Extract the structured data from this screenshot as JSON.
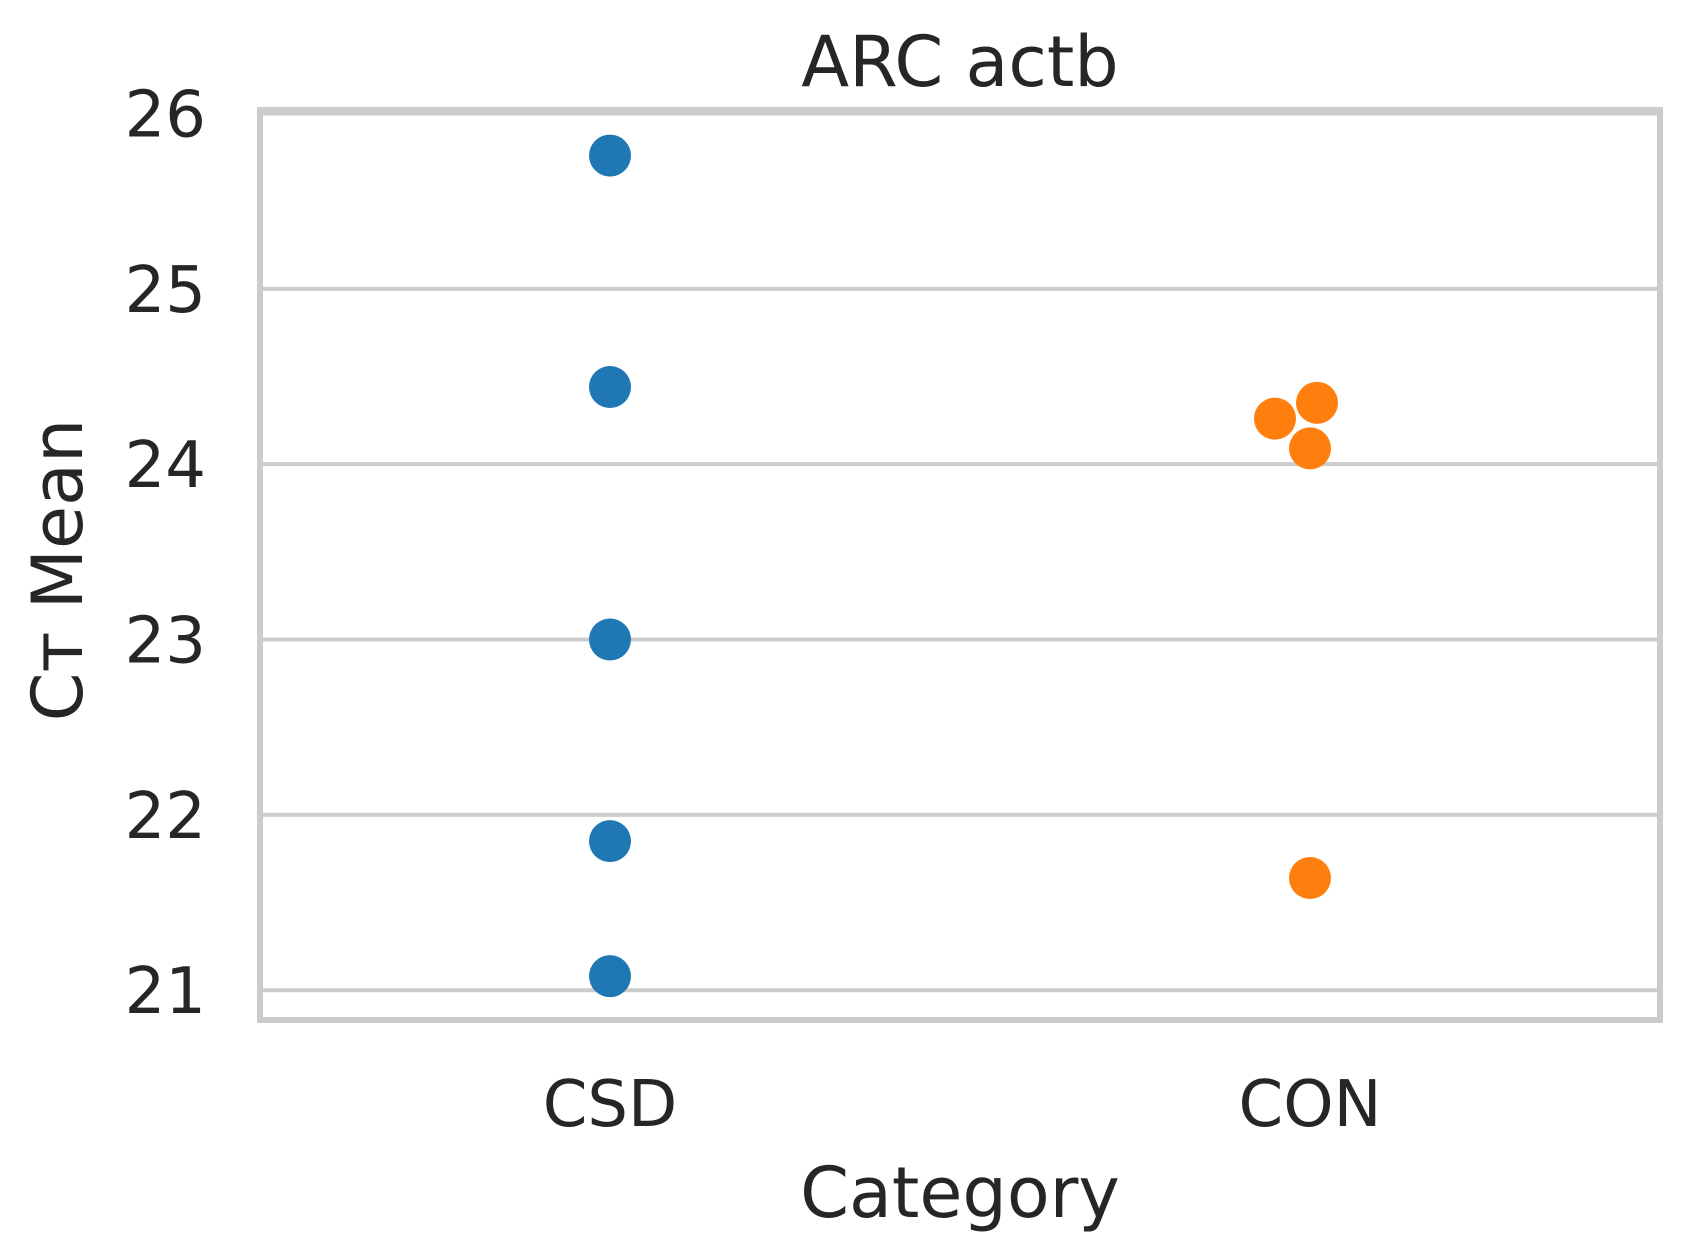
{
  "chart_data": {
    "type": "scatter",
    "title": "ARC actb",
    "xlabel": "Category",
    "ylabel": "Cт Mean",
    "categories": [
      "CSD",
      "CON"
    ],
    "yticks": [
      21,
      22,
      23,
      24,
      25,
      26
    ],
    "ylim": [
      20.83,
      26.02
    ],
    "grid": "horizontal",
    "series": [
      {
        "category": "CSD",
        "color": "#1f77b4",
        "points": [
          {
            "y": 25.76,
            "jitter": 0.0
          },
          {
            "y": 24.44,
            "jitter": 0.0
          },
          {
            "y": 23.0,
            "jitter": 0.0
          },
          {
            "y": 21.85,
            "jitter": 0.0
          },
          {
            "y": 21.08,
            "jitter": 0.0
          }
        ]
      },
      {
        "category": "CON",
        "color": "#ff7f0e",
        "points": [
          {
            "y": 24.35,
            "jitter": 0.01
          },
          {
            "y": 24.26,
            "jitter": -0.05
          },
          {
            "y": 24.09,
            "jitter": 0.0
          },
          {
            "y": 21.64,
            "jitter": 0.0
          }
        ]
      }
    ]
  }
}
